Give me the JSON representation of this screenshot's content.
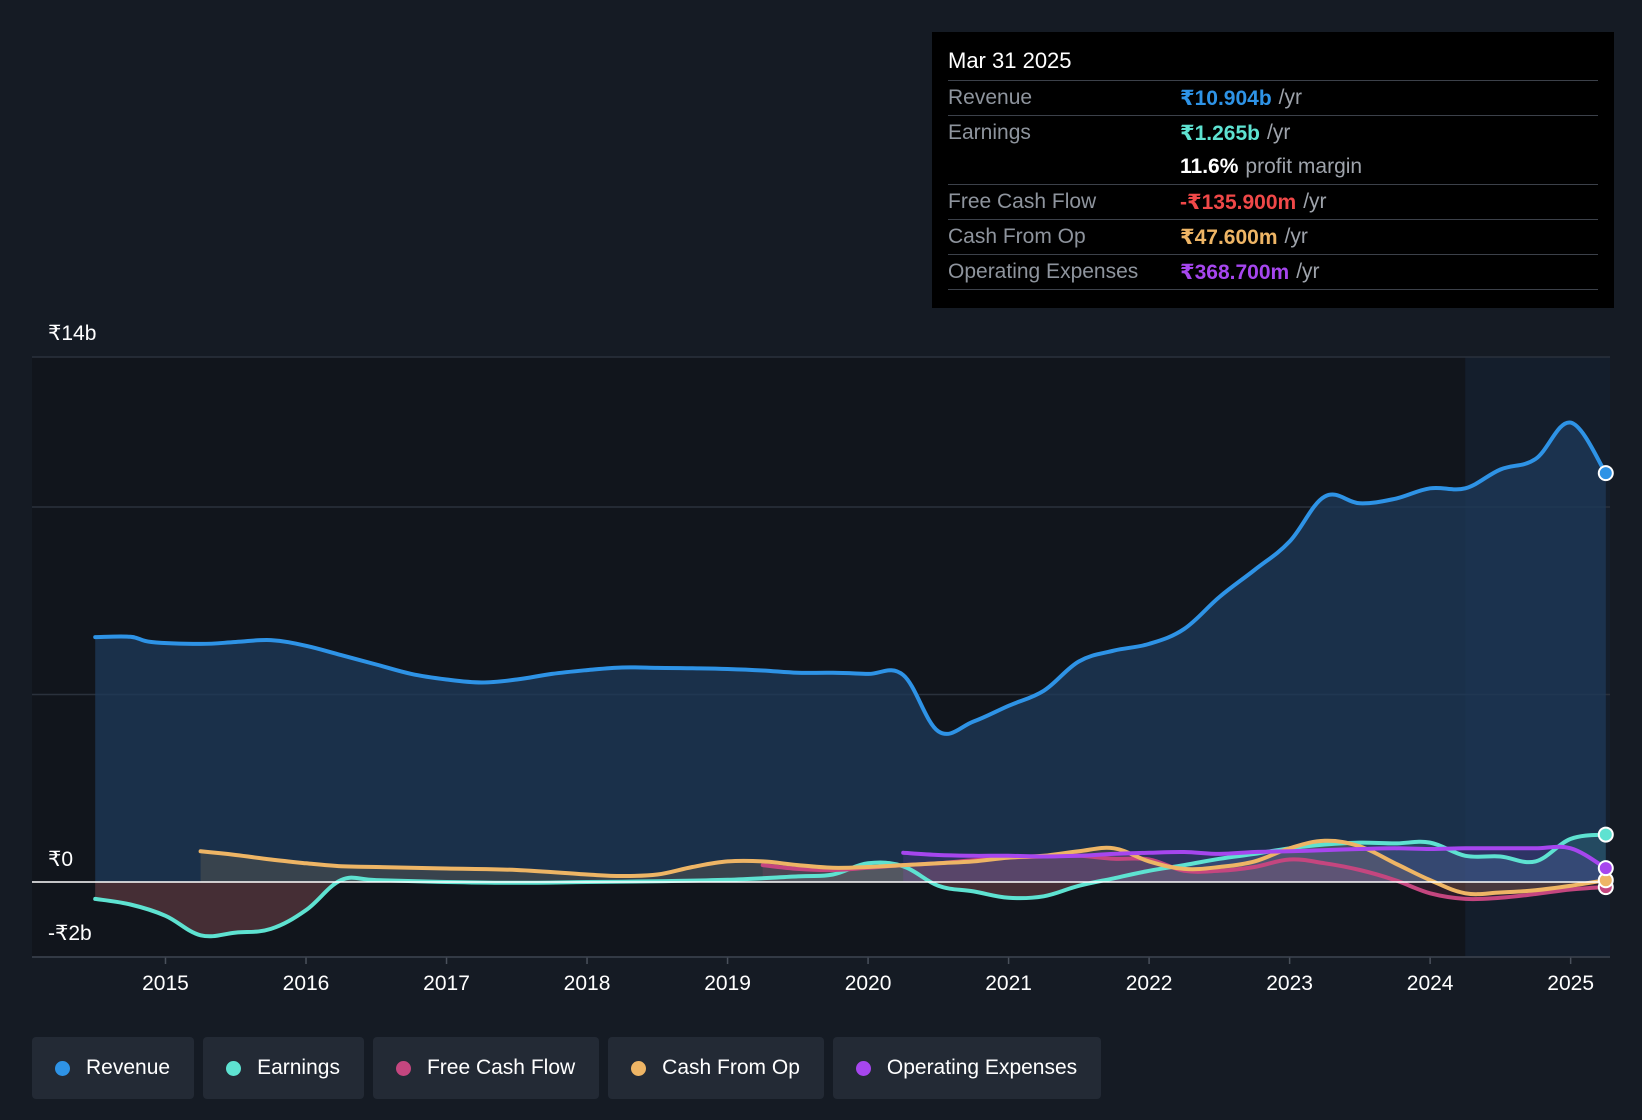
{
  "tooltip": {
    "date": "Mar 31 2025",
    "rows": [
      {
        "label": "Revenue",
        "value": "₹10.904b",
        "suffix": "/yr",
        "color": "#2e93e6"
      },
      {
        "label": "Earnings",
        "value": "₹1.265b",
        "suffix": "/yr",
        "color": "#5ee2d1"
      },
      {
        "label": "",
        "value": "11.6%",
        "suffix": "profit margin",
        "color": "#ffffff"
      },
      {
        "label": "Free Cash Flow",
        "value": "-₹135.900m",
        "suffix": "/yr",
        "color": "#f04848"
      },
      {
        "label": "Cash From Op",
        "value": "₹47.600m",
        "suffix": "/yr",
        "color": "#eeb565"
      },
      {
        "label": "Operating Expenses",
        "value": "₹368.700m",
        "suffix": "/yr",
        "color": "#a646ee"
      }
    ]
  },
  "legend": [
    {
      "label": "Revenue",
      "color": "#2e93e6"
    },
    {
      "label": "Earnings",
      "color": "#5ee2d1"
    },
    {
      "label": "Free Cash Flow",
      "color": "#c4467f"
    },
    {
      "label": "Cash From Op",
      "color": "#eeb565"
    },
    {
      "label": "Operating Expenses",
      "color": "#a646ee"
    }
  ],
  "chart_data": {
    "type": "line",
    "title": "",
    "xlabel": "",
    "ylabel": "",
    "y_top_label": "₹14b",
    "y_zero_label": "₹0",
    "y_bottom_label": "-₹2b",
    "ylim": [
      -2,
      14
    ],
    "xlim": [
      2014.05,
      2025.28
    ],
    "x_ticks": [
      2015,
      2016,
      2017,
      2018,
      2019,
      2020,
      2021,
      2022,
      2023,
      2024,
      2025
    ],
    "x_tick_labels": [
      "2015",
      "2016",
      "2017",
      "2018",
      "2019",
      "2020",
      "2021",
      "2022",
      "2023",
      "2024",
      "2025"
    ],
    "highlight_from": 2024.25,
    "grid": true,
    "units": "₹ billions",
    "series": [
      {
        "name": "Revenue",
        "color": "#2e93e6",
        "width": 4,
        "fill": true,
        "points": [
          [
            2014.5,
            6.53
          ],
          [
            2014.75,
            6.54
          ],
          [
            2014.9,
            6.4
          ],
          [
            2015.25,
            6.35
          ],
          [
            2015.5,
            6.4
          ],
          [
            2015.75,
            6.45
          ],
          [
            2016.0,
            6.3
          ],
          [
            2016.25,
            6.05
          ],
          [
            2016.5,
            5.8
          ],
          [
            2016.75,
            5.55
          ],
          [
            2017.0,
            5.4
          ],
          [
            2017.25,
            5.32
          ],
          [
            2017.5,
            5.4
          ],
          [
            2017.75,
            5.55
          ],
          [
            2018.0,
            5.65
          ],
          [
            2018.25,
            5.72
          ],
          [
            2018.5,
            5.71
          ],
          [
            2018.75,
            5.7
          ],
          [
            2019.0,
            5.68
          ],
          [
            2019.25,
            5.64
          ],
          [
            2019.5,
            5.58
          ],
          [
            2019.75,
            5.58
          ],
          [
            2020.0,
            5.55
          ],
          [
            2020.25,
            5.52
          ],
          [
            2020.5,
            4.02
          ],
          [
            2020.75,
            4.28
          ],
          [
            2021.0,
            4.7
          ],
          [
            2021.25,
            5.1
          ],
          [
            2021.5,
            5.88
          ],
          [
            2021.75,
            6.17
          ],
          [
            2022.0,
            6.35
          ],
          [
            2022.25,
            6.75
          ],
          [
            2022.5,
            7.6
          ],
          [
            2022.75,
            8.32
          ],
          [
            2023.0,
            9.08
          ],
          [
            2023.25,
            10.28
          ],
          [
            2023.5,
            10.1
          ],
          [
            2023.75,
            10.22
          ],
          [
            2024.0,
            10.5
          ],
          [
            2024.25,
            10.5
          ],
          [
            2024.5,
            11.0
          ],
          [
            2024.75,
            11.28
          ],
          [
            2025.0,
            12.25
          ],
          [
            2025.25,
            10.904
          ]
        ]
      },
      {
        "name": "Earnings",
        "color": "#5ee2d1",
        "width": 4,
        "fill": false,
        "points": [
          [
            2014.5,
            -0.45
          ],
          [
            2014.75,
            -0.6
          ],
          [
            2015.0,
            -0.9
          ],
          [
            2015.25,
            -1.42
          ],
          [
            2015.5,
            -1.35
          ],
          [
            2015.75,
            -1.25
          ],
          [
            2016.0,
            -0.75
          ],
          [
            2016.25,
            0.05
          ],
          [
            2016.5,
            0.05
          ],
          [
            2017.0,
            0.0
          ],
          [
            2017.5,
            -0.02
          ],
          [
            2018.0,
            0.0
          ],
          [
            2018.5,
            0.02
          ],
          [
            2019.0,
            0.06
          ],
          [
            2019.5,
            0.15
          ],
          [
            2019.75,
            0.2
          ],
          [
            2020.0,
            0.5
          ],
          [
            2020.25,
            0.42
          ],
          [
            2020.5,
            -0.1
          ],
          [
            2020.75,
            -0.25
          ],
          [
            2021.0,
            -0.42
          ],
          [
            2021.25,
            -0.38
          ],
          [
            2021.5,
            -0.1
          ],
          [
            2021.75,
            0.1
          ],
          [
            2022.0,
            0.3
          ],
          [
            2022.25,
            0.45
          ],
          [
            2022.5,
            0.62
          ],
          [
            2022.75,
            0.75
          ],
          [
            2023.0,
            0.9
          ],
          [
            2023.25,
            1.0
          ],
          [
            2023.5,
            1.05
          ],
          [
            2023.75,
            1.03
          ],
          [
            2024.0,
            1.05
          ],
          [
            2024.25,
            0.7
          ],
          [
            2024.5,
            0.68
          ],
          [
            2024.75,
            0.55
          ],
          [
            2025.0,
            1.15
          ],
          [
            2025.25,
            1.265
          ]
        ]
      },
      {
        "name": "Free Cash Flow",
        "color": "#c4467f",
        "width": 4,
        "fill": false,
        "points": [
          [
            2019.25,
            0.45
          ],
          [
            2019.5,
            0.35
          ],
          [
            2019.75,
            0.32
          ],
          [
            2020.0,
            0.38
          ],
          [
            2020.25,
            0.45
          ],
          [
            2020.5,
            0.5
          ],
          [
            2020.75,
            0.58
          ],
          [
            2021.0,
            0.65
          ],
          [
            2021.25,
            0.68
          ],
          [
            2021.5,
            0.7
          ],
          [
            2021.75,
            0.62
          ],
          [
            2022.0,
            0.6
          ],
          [
            2022.25,
            0.3
          ],
          [
            2022.5,
            0.3
          ],
          [
            2022.75,
            0.4
          ],
          [
            2023.0,
            0.6
          ],
          [
            2023.25,
            0.5
          ],
          [
            2023.5,
            0.32
          ],
          [
            2023.75,
            0.05
          ],
          [
            2024.0,
            -0.3
          ],
          [
            2024.25,
            -0.45
          ],
          [
            2024.5,
            -0.42
          ],
          [
            2024.75,
            -0.32
          ],
          [
            2025.0,
            -0.2
          ],
          [
            2025.25,
            -0.136
          ]
        ]
      },
      {
        "name": "Cash From Op",
        "color": "#eeb565",
        "width": 4,
        "fill": false,
        "points": [
          [
            2015.25,
            0.82
          ],
          [
            2015.5,
            0.72
          ],
          [
            2015.75,
            0.6
          ],
          [
            2016.0,
            0.5
          ],
          [
            2016.25,
            0.42
          ],
          [
            2016.5,
            0.4
          ],
          [
            2017.0,
            0.36
          ],
          [
            2017.5,
            0.32
          ],
          [
            2018.0,
            0.2
          ],
          [
            2018.25,
            0.16
          ],
          [
            2018.5,
            0.2
          ],
          [
            2018.75,
            0.4
          ],
          [
            2019.0,
            0.55
          ],
          [
            2019.25,
            0.55
          ],
          [
            2019.5,
            0.45
          ],
          [
            2019.75,
            0.38
          ],
          [
            2020.0,
            0.4
          ],
          [
            2020.25,
            0.45
          ],
          [
            2020.5,
            0.5
          ],
          [
            2020.75,
            0.55
          ],
          [
            2021.0,
            0.65
          ],
          [
            2021.25,
            0.7
          ],
          [
            2021.5,
            0.82
          ],
          [
            2021.75,
            0.9
          ],
          [
            2022.0,
            0.55
          ],
          [
            2022.25,
            0.35
          ],
          [
            2022.5,
            0.4
          ],
          [
            2022.75,
            0.55
          ],
          [
            2023.0,
            0.9
          ],
          [
            2023.25,
            1.1
          ],
          [
            2023.5,
            0.95
          ],
          [
            2023.75,
            0.5
          ],
          [
            2024.0,
            0.05
          ],
          [
            2024.25,
            -0.3
          ],
          [
            2024.5,
            -0.28
          ],
          [
            2024.75,
            -0.22
          ],
          [
            2025.0,
            -0.1
          ],
          [
            2025.25,
            0.048
          ]
        ]
      },
      {
        "name": "Operating Expenses",
        "color": "#a646ee",
        "width": 4,
        "fill": false,
        "points": [
          [
            2020.25,
            0.78
          ],
          [
            2020.5,
            0.72
          ],
          [
            2020.75,
            0.7
          ],
          [
            2021.0,
            0.7
          ],
          [
            2021.25,
            0.68
          ],
          [
            2021.5,
            0.7
          ],
          [
            2021.75,
            0.75
          ],
          [
            2022.0,
            0.78
          ],
          [
            2022.25,
            0.8
          ],
          [
            2022.5,
            0.75
          ],
          [
            2022.75,
            0.8
          ],
          [
            2023.0,
            0.82
          ],
          [
            2023.25,
            0.85
          ],
          [
            2023.5,
            0.88
          ],
          [
            2023.75,
            0.9
          ],
          [
            2024.0,
            0.88
          ],
          [
            2024.25,
            0.9
          ],
          [
            2024.5,
            0.9
          ],
          [
            2024.75,
            0.9
          ],
          [
            2025.0,
            0.9
          ],
          [
            2025.25,
            0.369
          ]
        ]
      }
    ]
  }
}
